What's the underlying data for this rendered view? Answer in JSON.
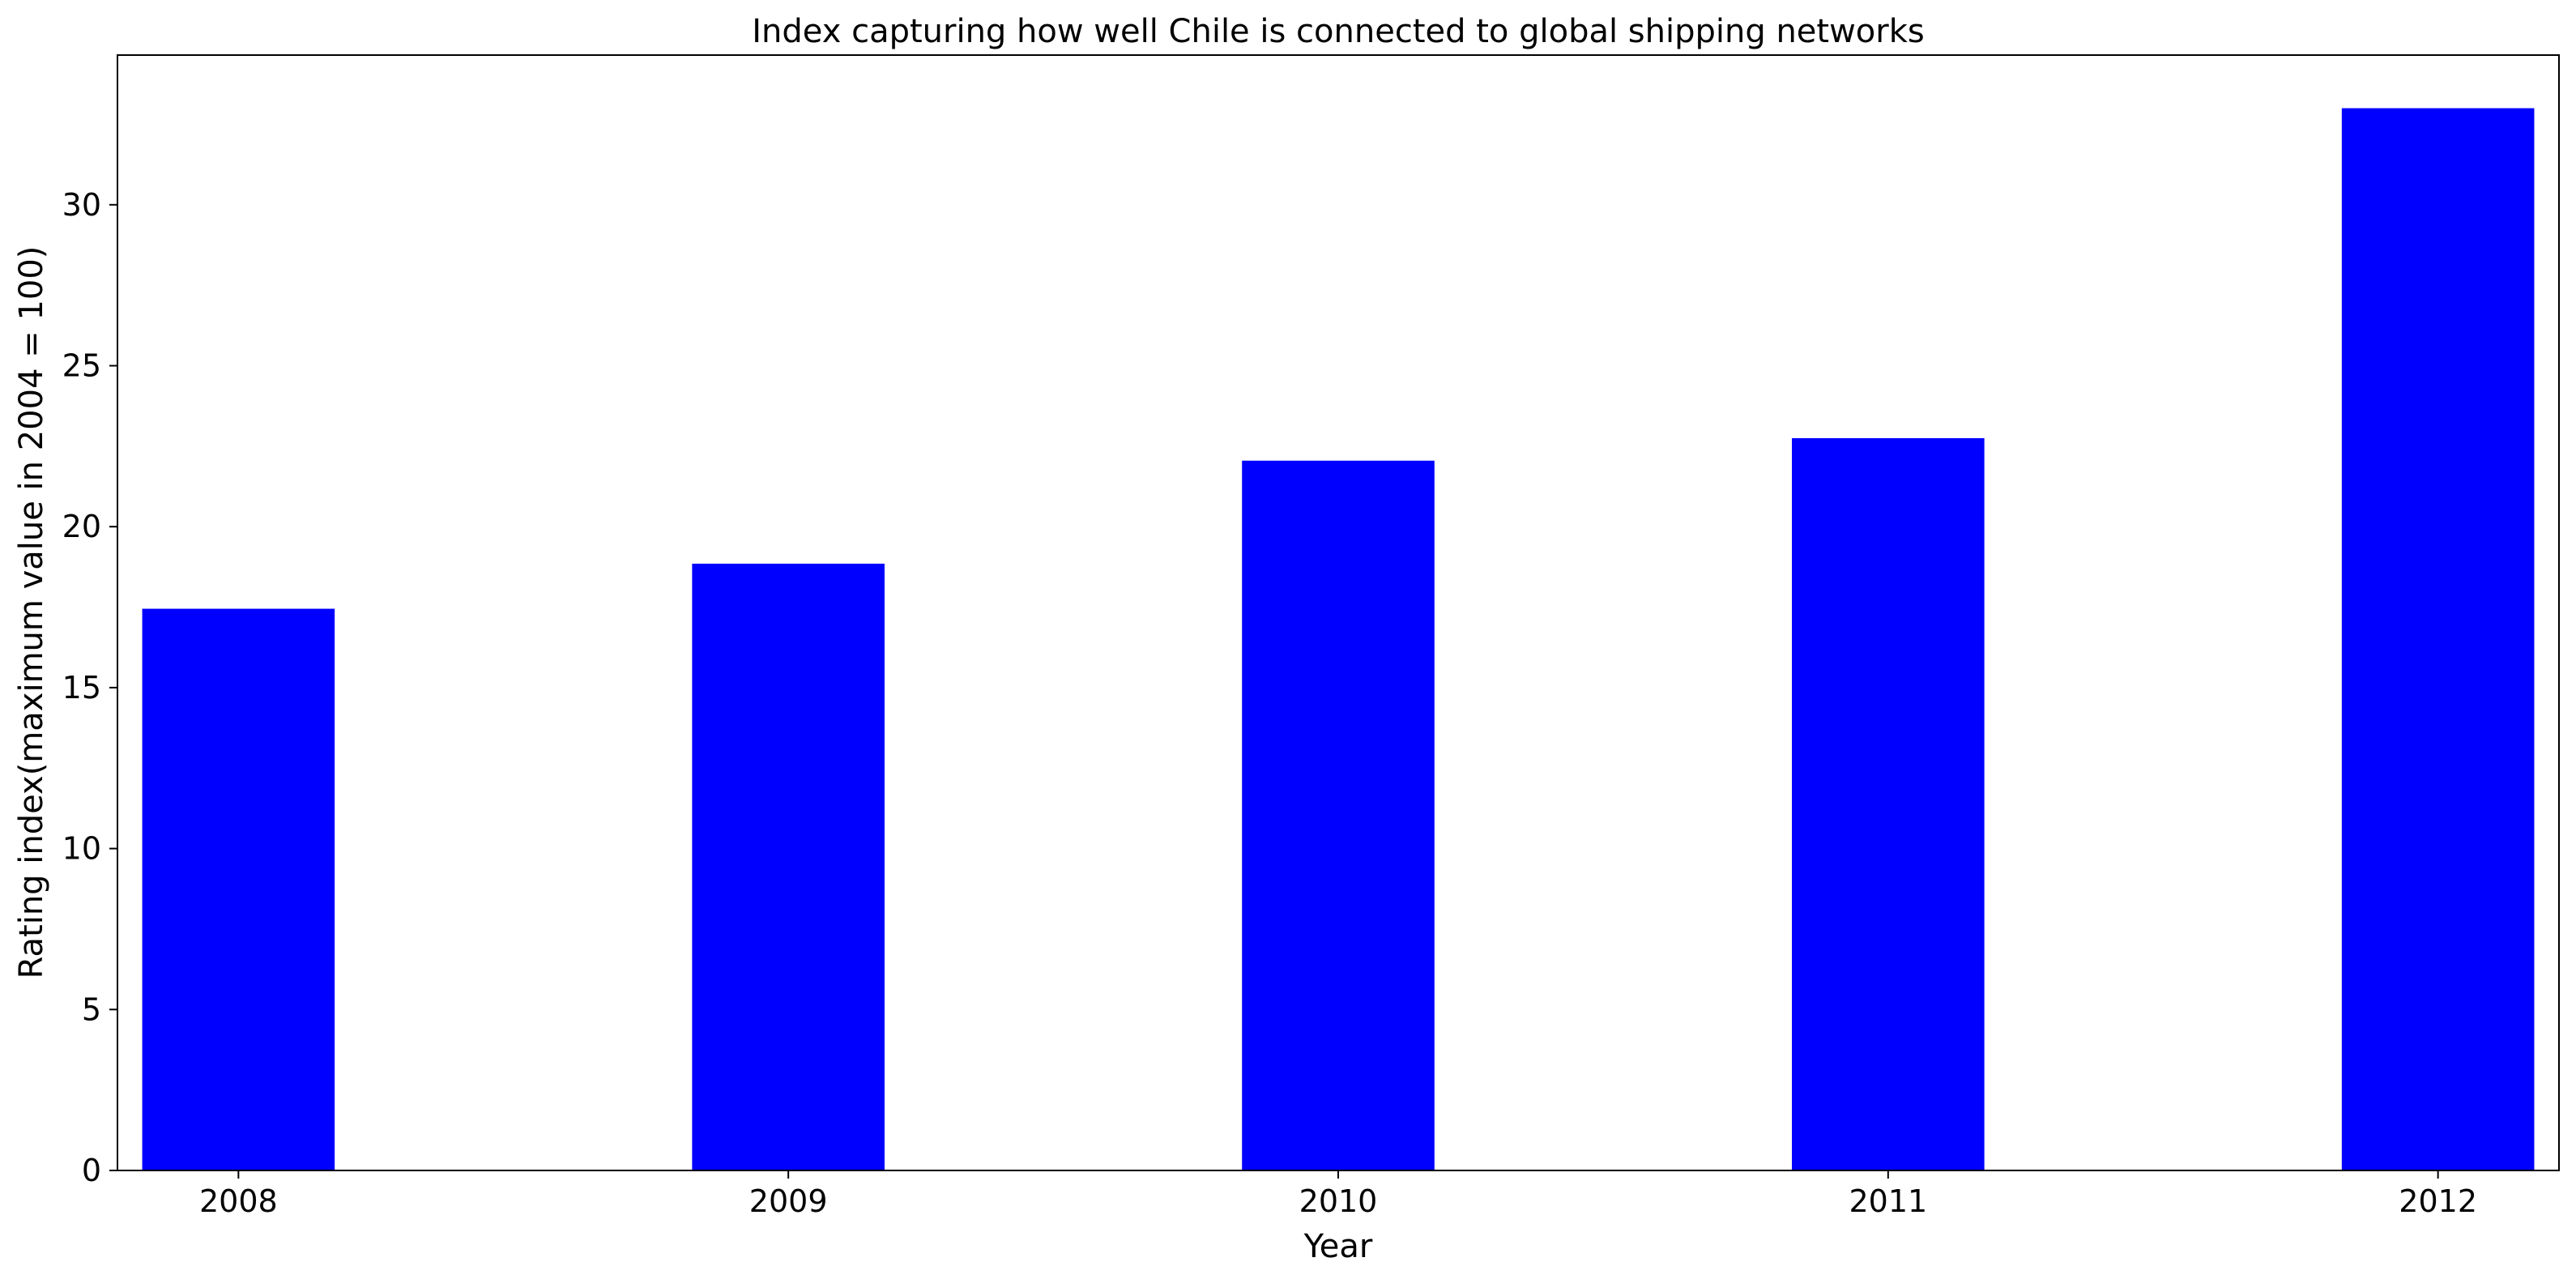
{
  "chart_data": {
    "type": "bar",
    "title": "Index capturing how well Chile is connected to global shipping networks",
    "xlabel": "Year",
    "ylabel": "Rating index(maximum value in 2004 = 100)",
    "categories": [
      "2008",
      "2009",
      "2010",
      "2011",
      "2012"
    ],
    "values": [
      17.45,
      18.85,
      22.05,
      22.75,
      33.0
    ],
    "ylim": [
      0,
      34.65
    ],
    "yticks": [
      0,
      5,
      10,
      15,
      20,
      25,
      30
    ],
    "grid": false,
    "legend": "none",
    "bar_color": "#0000ff"
  }
}
